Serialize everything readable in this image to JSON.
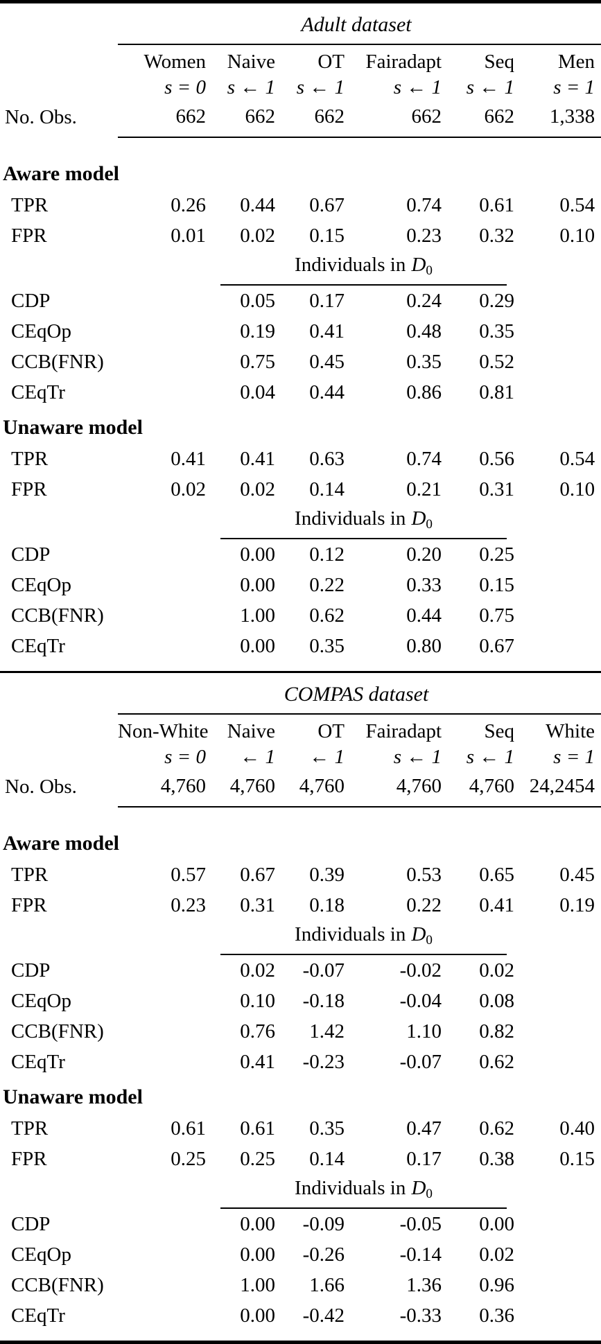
{
  "table": {
    "sections": [
      {
        "title": "Adult dataset",
        "header": {
          "names": [
            "Women",
            "Naive",
            "OT",
            "Fairadapt",
            "Seq",
            "Men"
          ],
          "s": [
            "s = 0",
            "s ← 1",
            "s ← 1",
            "s ← 1",
            "s ← 1",
            "s = 1"
          ]
        },
        "obs": {
          "label": "No. Obs.",
          "values": [
            "662",
            "662",
            "662",
            "662",
            "662",
            "1,338"
          ]
        },
        "individuals": {
          "prefix": "Individuals in",
          "symbol": "D",
          "sub": "0"
        },
        "models": [
          {
            "name": "Aware model",
            "full_rows": [
              {
                "label": "TPR",
                "values": [
                  "0.26",
                  "0.44",
                  "0.67",
                  "0.74",
                  "0.61",
                  "0.54"
                ]
              },
              {
                "label": "FPR",
                "values": [
                  "0.01",
                  "0.02",
                  "0.15",
                  "0.23",
                  "0.32",
                  "0.10"
                ]
              }
            ],
            "mid_rows": [
              {
                "label": "CDP",
                "values": [
                  "0.05",
                  "0.17",
                  "0.24",
                  "0.29"
                ]
              },
              {
                "label": "CEqOp",
                "values": [
                  "0.19",
                  "0.41",
                  "0.48",
                  "0.35"
                ]
              },
              {
                "label": "CCB(FNR)",
                "values": [
                  "0.75",
                  "0.45",
                  "0.35",
                  "0.52"
                ]
              },
              {
                "label": "CEqTr",
                "values": [
                  "0.04",
                  "0.44",
                  "0.86",
                  "0.81"
                ]
              }
            ]
          },
          {
            "name": "Unaware model",
            "full_rows": [
              {
                "label": "TPR",
                "values": [
                  "0.41",
                  "0.41",
                  "0.63",
                  "0.74",
                  "0.56",
                  "0.54"
                ]
              },
              {
                "label": "FPR",
                "values": [
                  "0.02",
                  "0.02",
                  "0.14",
                  "0.21",
                  "0.31",
                  "0.10"
                ]
              }
            ],
            "mid_rows": [
              {
                "label": "CDP",
                "values": [
                  "0.00",
                  "0.12",
                  "0.20",
                  "0.25"
                ]
              },
              {
                "label": "CEqOp",
                "values": [
                  "0.00",
                  "0.22",
                  "0.33",
                  "0.15"
                ]
              },
              {
                "label": "CCB(FNR)",
                "values": [
                  "1.00",
                  "0.62",
                  "0.44",
                  "0.75"
                ]
              },
              {
                "label": "CEqTr",
                "values": [
                  "0.00",
                  "0.35",
                  "0.80",
                  "0.67"
                ]
              }
            ]
          }
        ]
      },
      {
        "title": "COMPAS dataset",
        "header": {
          "names": [
            "Non-White",
            "Naive",
            "OT",
            "Fairadapt",
            "Seq",
            "White"
          ],
          "s": [
            "s = 0",
            "← 1",
            "← 1",
            "s ← 1",
            "s ← 1",
            "s = 1"
          ]
        },
        "obs": {
          "label": "No. Obs.",
          "values": [
            "4,760",
            "4,760",
            "4,760",
            "4,760",
            "4,760",
            "24,2454"
          ]
        },
        "individuals": {
          "prefix": "Individuals in",
          "symbol": "D",
          "sub": "0"
        },
        "models": [
          {
            "name": "Aware model",
            "full_rows": [
              {
                "label": "TPR",
                "values": [
                  "0.57",
                  "0.67",
                  "0.39",
                  "0.53",
                  "0.65",
                  "0.45"
                ]
              },
              {
                "label": "FPR",
                "values": [
                  "0.23",
                  "0.31",
                  "0.18",
                  "0.22",
                  "0.41",
                  "0.19"
                ]
              }
            ],
            "mid_rows": [
              {
                "label": "CDP",
                "values": [
                  "0.02",
                  "-0.07",
                  "-0.02",
                  "0.02"
                ]
              },
              {
                "label": "CEqOp",
                "values": [
                  "0.10",
                  "-0.18",
                  "-0.04",
                  "0.08"
                ]
              },
              {
                "label": "CCB(FNR)",
                "values": [
                  "0.76",
                  "1.42",
                  "1.10",
                  "0.82"
                ]
              },
              {
                "label": "CEqTr",
                "values": [
                  "0.41",
                  "-0.23",
                  "-0.07",
                  "0.62"
                ]
              }
            ]
          },
          {
            "name": "Unaware model",
            "full_rows": [
              {
                "label": "TPR",
                "values": [
                  "0.61",
                  "0.61",
                  "0.35",
                  "0.47",
                  "0.62",
                  "0.40"
                ]
              },
              {
                "label": "FPR",
                "values": [
                  "0.25",
                  "0.25",
                  "0.14",
                  "0.17",
                  "0.38",
                  "0.15"
                ]
              }
            ],
            "mid_rows": [
              {
                "label": "CDP",
                "values": [
                  "0.00",
                  "-0.09",
                  "-0.05",
                  "0.00"
                ]
              },
              {
                "label": "CEqOp",
                "values": [
                  "0.00",
                  "-0.26",
                  "-0.14",
                  "0.02"
                ]
              },
              {
                "label": "CCB(FNR)",
                "values": [
                  "1.00",
                  "1.66",
                  "1.36",
                  "0.96"
                ]
              },
              {
                "label": "CEqTr",
                "values": [
                  "0.00",
                  "-0.42",
                  "-0.33",
                  "0.36"
                ]
              }
            ]
          }
        ]
      }
    ]
  }
}
